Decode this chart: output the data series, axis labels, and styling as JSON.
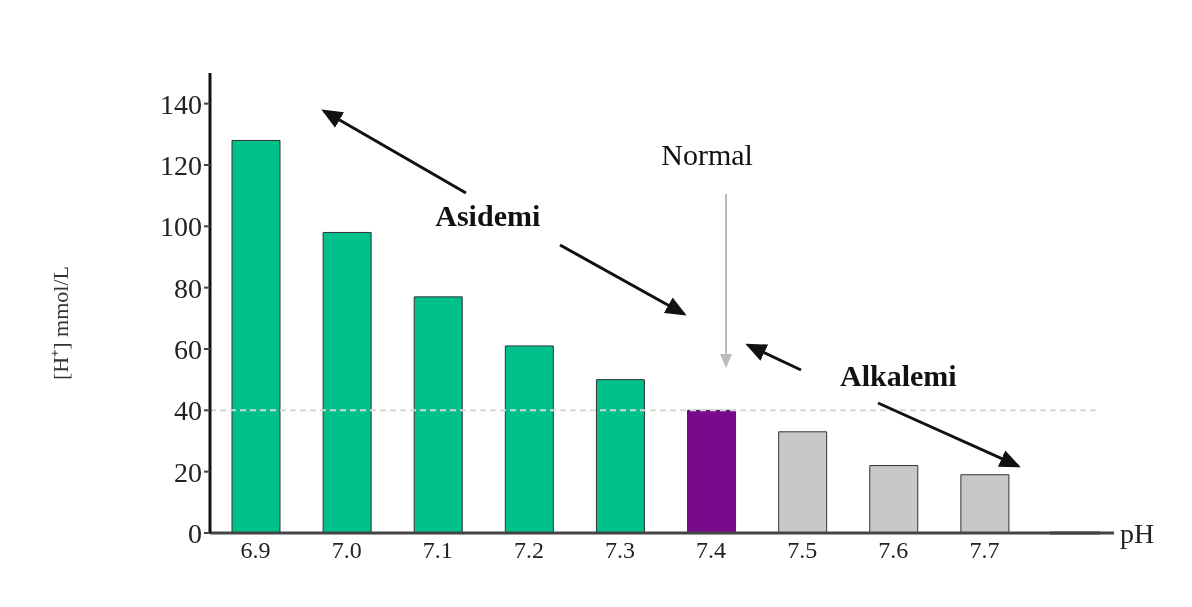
{
  "chart_data": {
    "type": "bar",
    "xlabel": "pH",
    "ylabel": "[H⁺] mmol/L",
    "categories": [
      "6.9",
      "7.0",
      "7.1",
      "7.2",
      "7.3",
      "7.4",
      "7.5",
      "7.6",
      "7.7"
    ],
    "values": [
      128,
      98,
      77,
      61,
      50,
      40,
      33,
      22,
      19
    ],
    "colors": [
      "#00c08b",
      "#00c08b",
      "#00c08b",
      "#00c08b",
      "#00c08b",
      "#7a0a8c",
      "#c8c8c8",
      "#c8c8c8",
      "#c8c8c8"
    ],
    "ylim": [
      0,
      150
    ],
    "yticks": [
      0,
      20,
      40,
      60,
      80,
      100,
      120,
      140
    ],
    "grid": false,
    "legend": false,
    "ref_lines": [
      {
        "axis": "y",
        "value": 40,
        "color": "#d8d8d8",
        "line_style": "dashed"
      }
    ],
    "annotations": [
      "Asidemi",
      "Normal",
      "Alkalemi"
    ]
  }
}
